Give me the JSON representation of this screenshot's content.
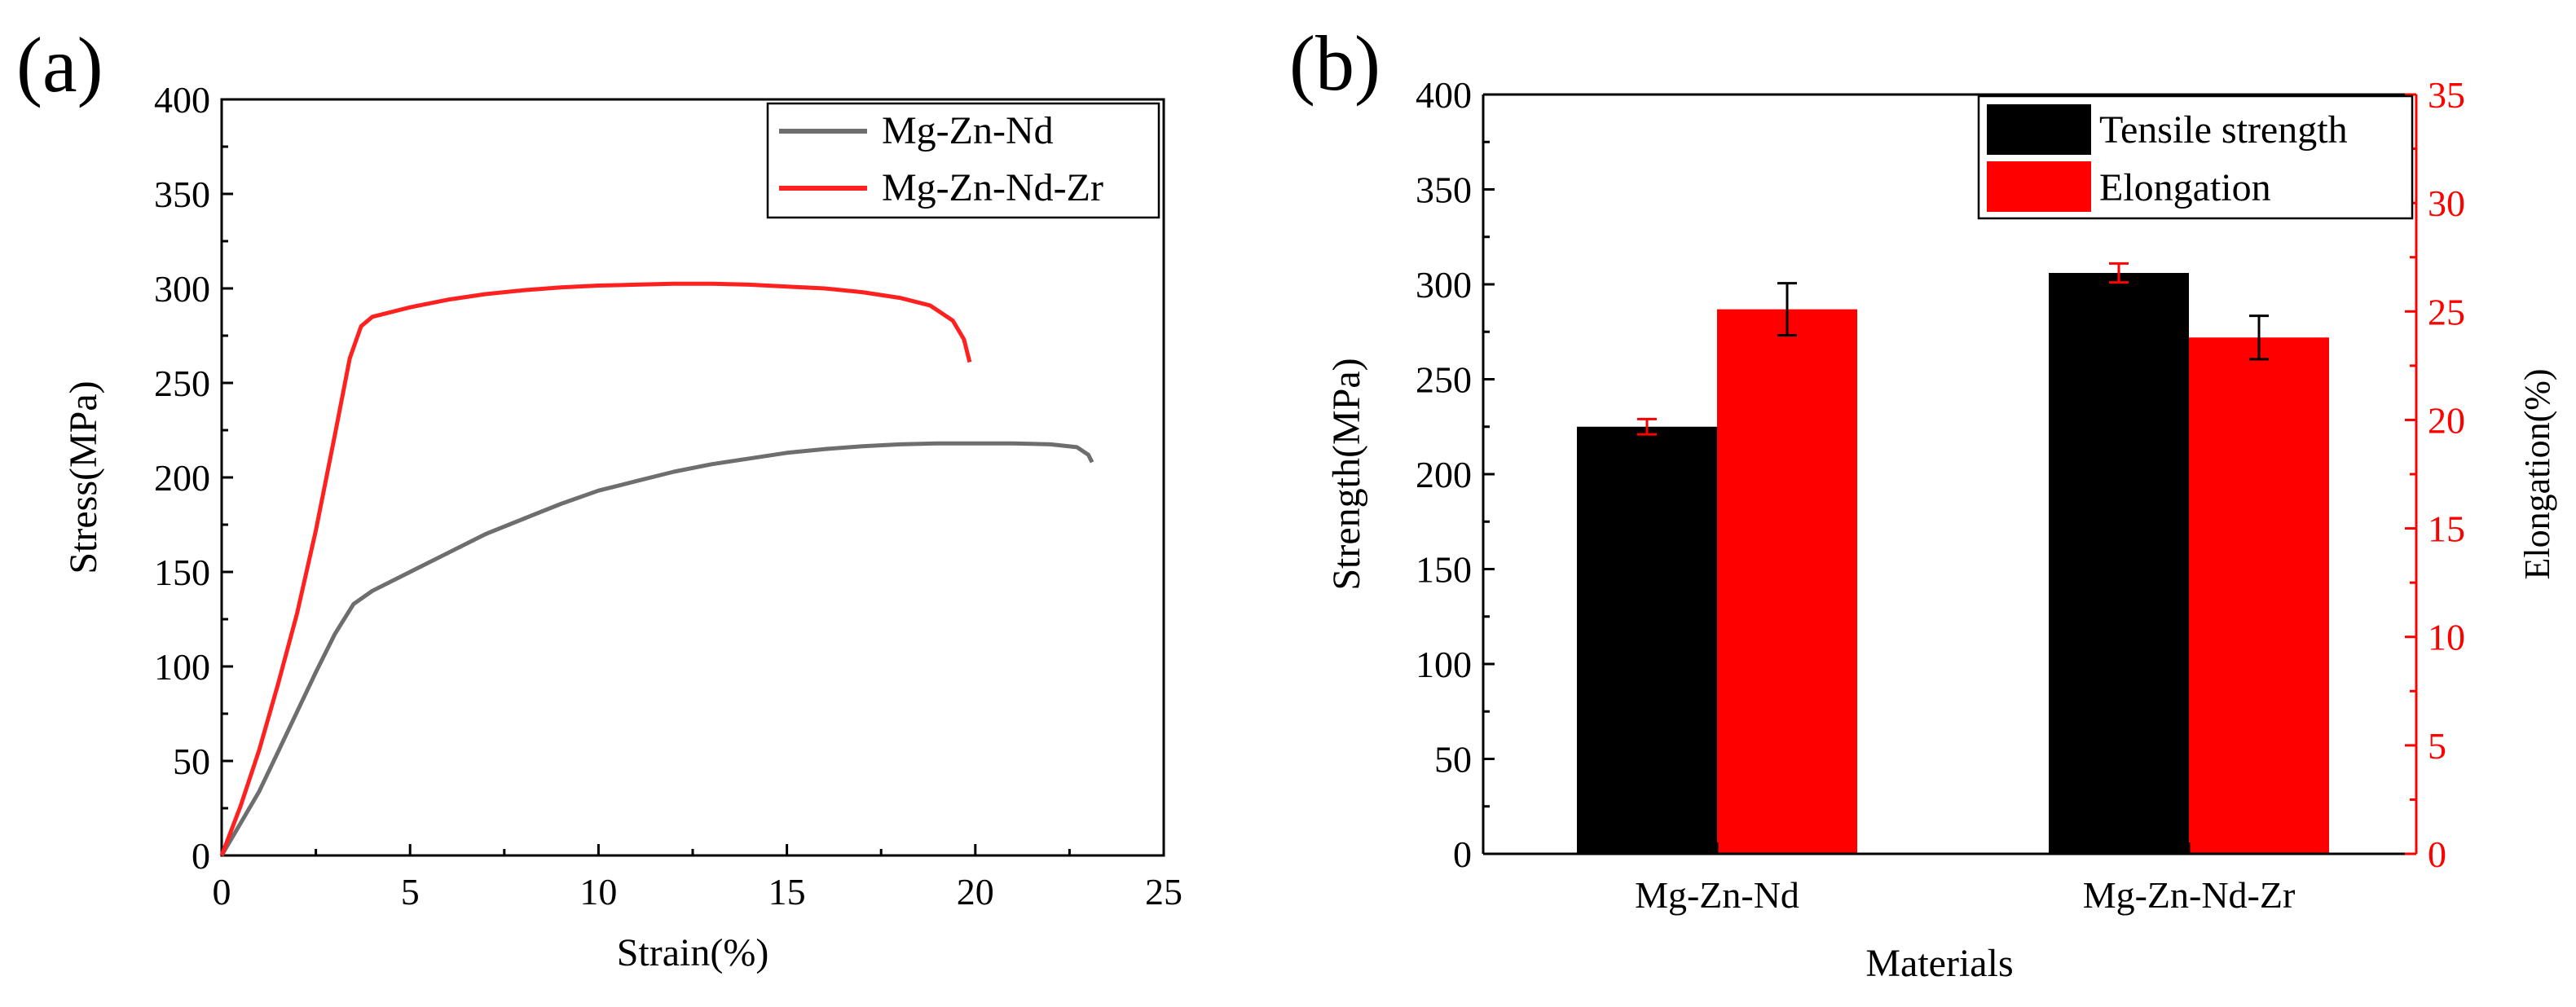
{
  "chart_data": [
    {
      "panel_label": "(a)",
      "type": "line",
      "xlabel": "Strain(%)",
      "ylabel": "Stress(MPa)",
      "xlim": [
        0,
        25
      ],
      "ylim": [
        0,
        400
      ],
      "xticks": [
        0,
        5,
        10,
        15,
        20,
        25
      ],
      "yticks": [
        0,
        50,
        100,
        150,
        200,
        250,
        300,
        350,
        400
      ],
      "legend_position": "top-right",
      "series": [
        {
          "name": "Mg-Zn-Nd",
          "color": "#6e6e6e",
          "points": [
            [
              0,
              0
            ],
            [
              0.5,
              17
            ],
            [
              1,
              34
            ],
            [
              1.5,
              55
            ],
            [
              2,
              76
            ],
            [
              2.5,
              97
            ],
            [
              3,
              117
            ],
            [
              3.5,
              133
            ],
            [
              4,
              140
            ],
            [
              5,
              150
            ],
            [
              6,
              160
            ],
            [
              7,
              170
            ],
            [
              8,
              178
            ],
            [
              9,
              186
            ],
            [
              10,
              193
            ],
            [
              11,
              198
            ],
            [
              12,
              203
            ],
            [
              13,
              207
            ],
            [
              14,
              210
            ],
            [
              15,
              213
            ],
            [
              16,
              215
            ],
            [
              17,
              216.5
            ],
            [
              18,
              217.5
            ],
            [
              19,
              218
            ],
            [
              20,
              218
            ],
            [
              21,
              218
            ],
            [
              22,
              217.5
            ],
            [
              22.7,
              216
            ],
            [
              23,
              212
            ],
            [
              23.1,
              208
            ]
          ]
        },
        {
          "name": "Mg-Zn-Nd-Zr",
          "color": "#ff2020",
          "points": [
            [
              0,
              0
            ],
            [
              0.5,
              26
            ],
            [
              1,
              56
            ],
            [
              1.5,
              91
            ],
            [
              2,
              128
            ],
            [
              2.5,
              172
            ],
            [
              3,
              222
            ],
            [
              3.4,
              263
            ],
            [
              3.7,
              280
            ],
            [
              4,
              285
            ],
            [
              5,
              290
            ],
            [
              6,
              294
            ],
            [
              7,
              297
            ],
            [
              8,
              299
            ],
            [
              9,
              300.5
            ],
            [
              10,
              301.5
            ],
            [
              11,
              302
            ],
            [
              12,
              302.5
            ],
            [
              13,
              302.5
            ],
            [
              14,
              302
            ],
            [
              15,
              301
            ],
            [
              16,
              300
            ],
            [
              17,
              298
            ],
            [
              18,
              295
            ],
            [
              18.8,
              291
            ],
            [
              19.4,
              283
            ],
            [
              19.7,
              273
            ],
            [
              19.85,
              261
            ]
          ]
        }
      ]
    },
    {
      "panel_label": "(b)",
      "type": "bar",
      "xlabel": "Materials",
      "ylabel": "Strength(MPa)",
      "y2label": "Elongation(%)",
      "categories": [
        "Mg-Zn-Nd",
        "Mg-Zn-Nd-Zr"
      ],
      "ylim": [
        0,
        400
      ],
      "y2lim": [
        0,
        35
      ],
      "yticks": [
        0,
        50,
        100,
        150,
        200,
        250,
        300,
        350,
        400
      ],
      "y2ticks": [
        0,
        5,
        10,
        15,
        20,
        25,
        30,
        35
      ],
      "legend_position": "top-right",
      "axis2_color": "#ff0000",
      "series": [
        {
          "name": "Tensile strength",
          "axis": "left",
          "color": "#000000",
          "values": [
            225,
            306
          ],
          "errors": [
            4,
            5
          ],
          "error_color": "#ff0000"
        },
        {
          "name": "Elongation",
          "axis": "right",
          "color": "#ff0000",
          "values": [
            25.1,
            23.8
          ],
          "errors": [
            1.2,
            1.0
          ],
          "error_color": "#000000"
        }
      ]
    }
  ]
}
